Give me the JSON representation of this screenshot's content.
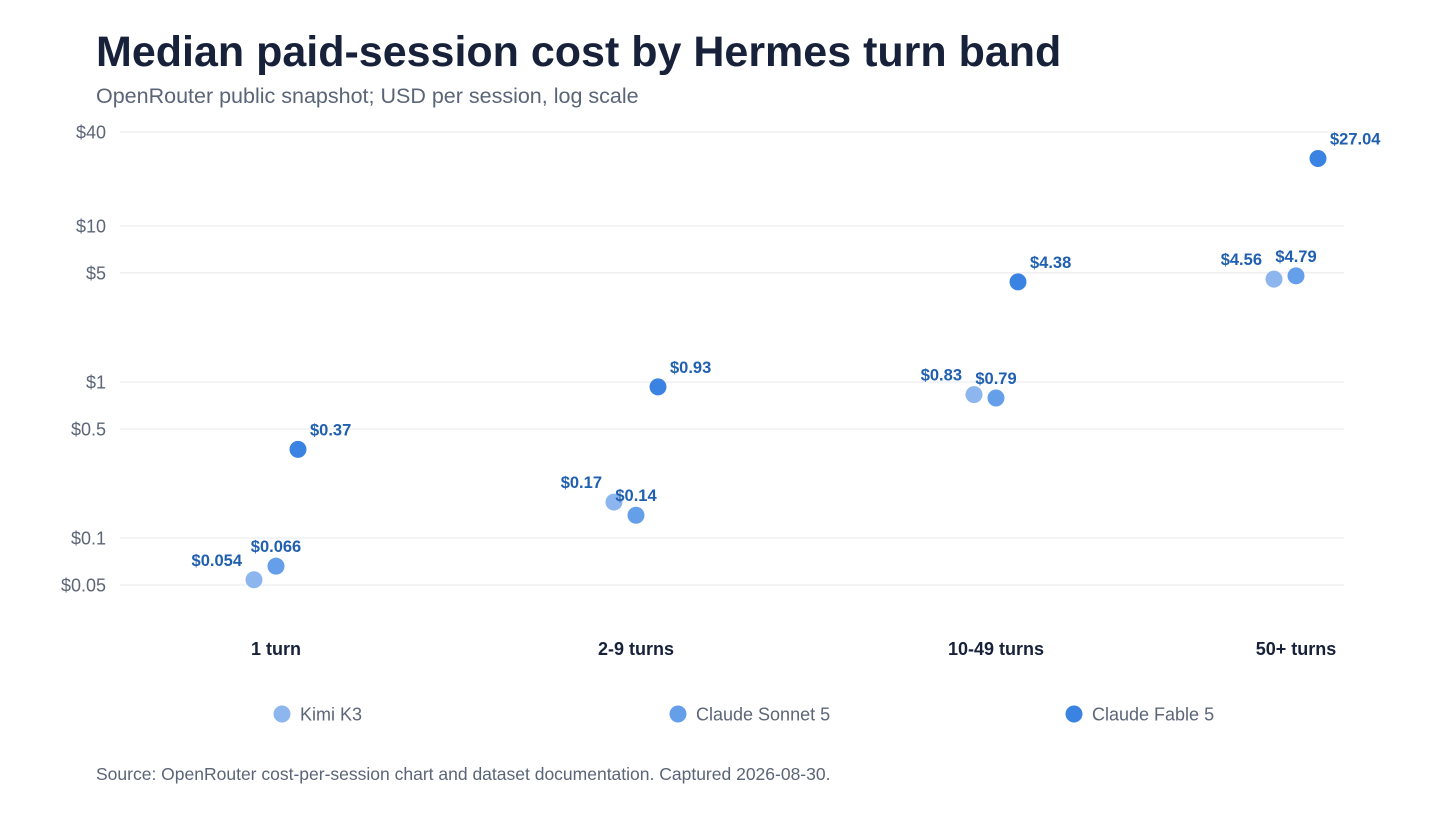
{
  "title": "Median paid-session cost by Hermes turn band",
  "subtitle": "OpenRouter public snapshot; USD per session, log scale",
  "source": "Source: OpenRouter cost-per-session chart and dataset documentation. Captured 2026-08-30.",
  "chart_data": {
    "type": "scatter",
    "title": "Median paid-session cost by Hermes turn band",
    "subtitle": "OpenRouter public snapshot; USD per session, log scale",
    "xlabel": "",
    "ylabel": "",
    "yscale": "log",
    "ylim": [
      0.05,
      40
    ],
    "grid": true,
    "legend": "bottom",
    "categories": [
      "1 turn",
      "2-9 turns",
      "10-49 turns",
      "50+ turns"
    ],
    "y_ticks": [
      {
        "value": 40,
        "label": "$40"
      },
      {
        "value": 10,
        "label": "$10"
      },
      {
        "value": 5,
        "label": "$5"
      },
      {
        "value": 1,
        "label": "$1"
      },
      {
        "value": 0.5,
        "label": "$0.5"
      },
      {
        "value": 0.1,
        "label": "$0.1"
      },
      {
        "value": 0.05,
        "label": "$0.05"
      }
    ],
    "series": [
      {
        "name": "Kimi K3",
        "color": "#8db6ee",
        "values": [
          0.054,
          0.17,
          0.83,
          4.56
        ],
        "labels": [
          "$0.054",
          "$0.17",
          "$0.83",
          "$4.56"
        ]
      },
      {
        "name": "Claude Sonnet 5",
        "color": "#659ee9",
        "values": [
          0.066,
          0.14,
          0.79,
          4.79
        ],
        "labels": [
          "$0.066",
          "$0.14",
          "$0.79",
          "$4.79"
        ]
      },
      {
        "name": "Claude Fable 5",
        "color": "#3a83e3",
        "values": [
          0.37,
          0.93,
          4.38,
          27.04
        ],
        "labels": [
          "$0.37",
          "$0.93",
          "$4.38",
          "$27.04"
        ]
      }
    ]
  }
}
